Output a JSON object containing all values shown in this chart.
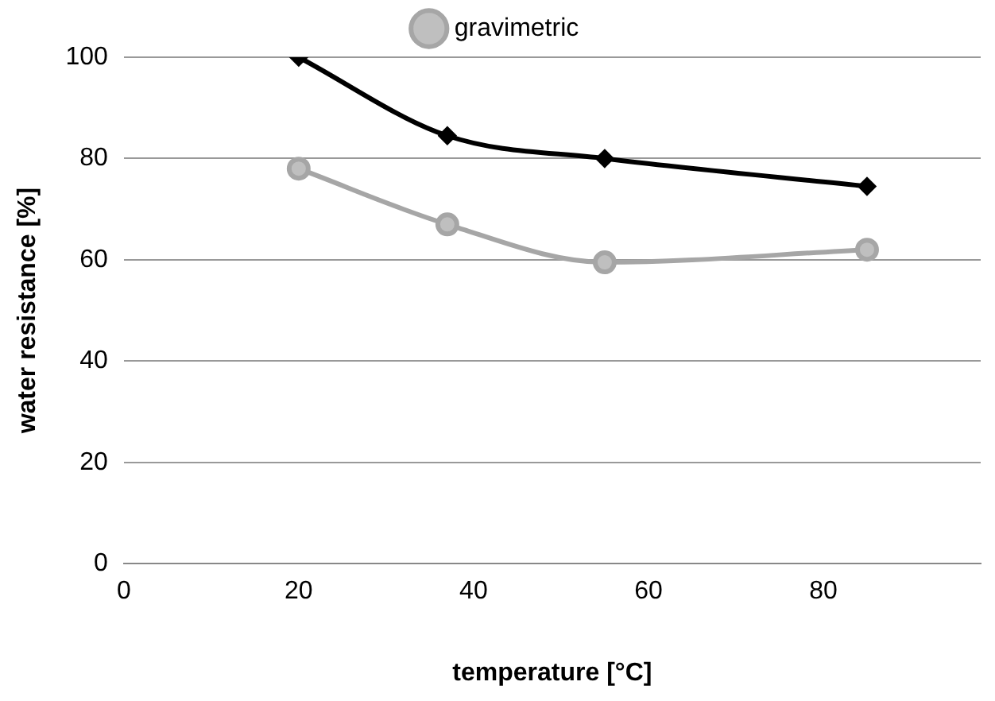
{
  "chart_data": {
    "type": "line",
    "xlabel": "temperature [°C]",
    "ylabel": "water resistance [%]",
    "x": [
      20,
      37,
      55,
      85
    ],
    "series": [
      {
        "name": "gravimetric",
        "color": "#a6a6a6",
        "marker": "circle",
        "values": [
          78,
          67,
          59.5,
          62
        ]
      },
      {
        "color": "#000000",
        "marker": "diamond",
        "values": [
          100,
          84.5,
          80,
          74.5
        ]
      }
    ],
    "xlim": [
      0,
      98
    ],
    "xticks": [
      0,
      20,
      40,
      60,
      80
    ],
    "ylim": [
      0,
      100
    ],
    "yticks": [
      0,
      20,
      40,
      60,
      80,
      100
    ],
    "grid": "y",
    "legend": "top",
    "line_style": "solid"
  }
}
